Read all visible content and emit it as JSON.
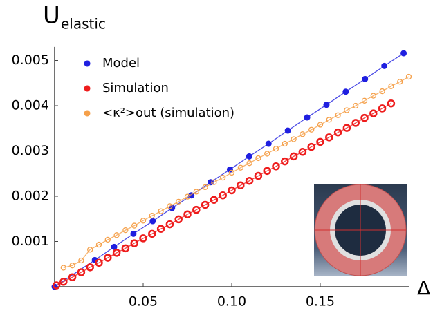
{
  "chart_data": {
    "type": "scatter",
    "ylabel": "U",
    "ylabel_sub": "elastic",
    "xlabel": "Δ",
    "xlim": [
      0,
      0.2
    ],
    "ylim": [
      0,
      0.0053
    ],
    "xticks": [
      0.05,
      {
        "value": 0.1,
        "label": "0.10"
      },
      0.15
    ],
    "yticks": [
      0.001,
      0.002,
      0.003,
      0.004,
      0.005
    ],
    "grid": false,
    "legend": "upper left",
    "series": [
      {
        "name": "Model",
        "color": "#1f1fe0",
        "marker": "dot",
        "x": [
          0,
          0.0227,
          0.0336,
          0.0445,
          0.0554,
          0.0663,
          0.0772,
          0.0881,
          0.099,
          0.1099,
          0.1208,
          0.1317,
          0.1426,
          0.1535,
          0.1644,
          0.1753,
          0.1862,
          0.1971
        ],
        "values": [
          0,
          0.00059,
          0.00088,
          0.00117,
          0.00145,
          0.00174,
          0.00202,
          0.00231,
          0.00259,
          0.00288,
          0.00316,
          0.00345,
          0.00374,
          0.00402,
          0.00431,
          0.00459,
          0.00488,
          0.00516
        ]
      },
      {
        "name": "Simulation",
        "color": "#ee1c1c",
        "marker": "ring",
        "x": [
          0.001,
          0.005,
          0.01,
          0.015,
          0.02,
          0.025,
          0.03,
          0.035,
          0.04,
          0.045,
          0.05,
          0.055,
          0.06,
          0.065,
          0.07,
          0.075,
          0.08,
          0.085,
          0.09,
          0.095,
          0.1,
          0.105,
          0.11,
          0.115,
          0.12,
          0.125,
          0.13,
          0.135,
          0.14,
          0.145,
          0.15,
          0.155,
          0.16,
          0.165,
          0.17,
          0.175,
          0.18,
          0.185,
          0.19
        ],
        "values": [
          3e-05,
          0.00011,
          0.00021,
          0.00032,
          0.00043,
          0.00053,
          0.00064,
          0.00075,
          0.00085,
          0.00096,
          0.00107,
          0.00117,
          0.00128,
          0.00138,
          0.00149,
          0.0016,
          0.0017,
          0.00181,
          0.00192,
          0.00202,
          0.00213,
          0.00224,
          0.00234,
          0.00245,
          0.00256,
          0.00266,
          0.00277,
          0.00288,
          0.00298,
          0.00309,
          0.0032,
          0.0033,
          0.00341,
          0.00351,
          0.00362,
          0.00373,
          0.00383,
          0.00394,
          0.00405
        ]
      },
      {
        "name": "<κ²>out (simulation)",
        "color": "#f5a04a",
        "marker": "ring-small",
        "x": [
          0.005,
          0.01,
          0.015,
          0.02,
          0.025,
          0.03,
          0.035,
          0.04,
          0.045,
          0.05,
          0.055,
          0.06,
          0.065,
          0.07,
          0.075,
          0.08,
          0.085,
          0.09,
          0.095,
          0.1,
          0.105,
          0.11,
          0.115,
          0.12,
          0.125,
          0.13,
          0.135,
          0.14,
          0.145,
          0.15,
          0.155,
          0.16,
          0.165,
          0.17,
          0.175,
          0.18,
          0.185,
          0.19,
          0.195,
          0.2
        ],
        "values": [
          0.00042,
          0.00047,
          0.00058,
          0.00082,
          0.00093,
          0.00104,
          0.00114,
          0.00125,
          0.00135,
          0.00146,
          0.00157,
          0.00167,
          0.00178,
          0.00188,
          0.00199,
          0.0021,
          0.0022,
          0.00231,
          0.00241,
          0.00252,
          0.00263,
          0.00273,
          0.00284,
          0.00294,
          0.00305,
          0.00316,
          0.00326,
          0.00337,
          0.00347,
          0.00358,
          0.00369,
          0.00379,
          0.0039,
          0.004,
          0.00411,
          0.00422,
          0.00432,
          0.00443,
          0.00453,
          0.00464
        ]
      }
    ]
  }
}
